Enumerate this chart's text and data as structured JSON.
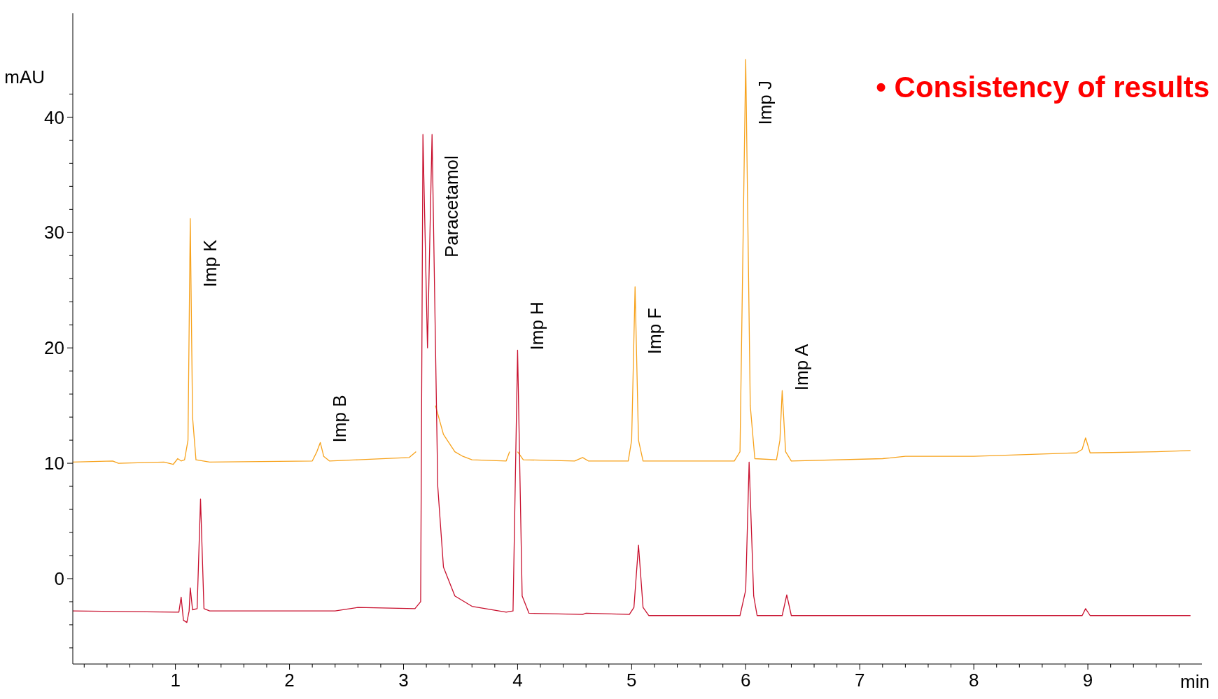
{
  "chart_data": {
    "type": "line",
    "xlabel": "min",
    "ylabel": "mAU",
    "xlim": [
      0.1,
      10
    ],
    "ylim": [
      -7.4,
      49
    ],
    "xticks": [
      {
        "value": 0.2,
        "label": null
      },
      {
        "value": 0.4,
        "label": null
      },
      {
        "value": 0.6,
        "label": null
      },
      {
        "value": 0.8,
        "label": null
      },
      1,
      {
        "value": 1.2,
        "label": null
      },
      {
        "value": 1.4,
        "label": null
      },
      {
        "value": 1.6,
        "label": null
      },
      {
        "value": 1.8,
        "label": null
      },
      2,
      {
        "value": 2.2,
        "label": null
      },
      {
        "value": 2.4,
        "label": null
      },
      {
        "value": 2.6,
        "label": null
      },
      {
        "value": 2.8,
        "label": null
      },
      3,
      {
        "value": 3.2,
        "label": null
      },
      {
        "value": 3.4,
        "label": null
      },
      {
        "value": 3.6,
        "label": null
      },
      {
        "value": 3.8,
        "label": null
      },
      4,
      {
        "value": 4.2,
        "label": null
      },
      {
        "value": 4.4,
        "label": null
      },
      {
        "value": 4.6,
        "label": null
      },
      {
        "value": 4.8,
        "label": null
      },
      5,
      {
        "value": 5.2,
        "label": null
      },
      {
        "value": 5.4,
        "label": null
      },
      {
        "value": 5.6,
        "label": null
      },
      {
        "value": 5.8,
        "label": null
      },
      6,
      {
        "value": 6.2,
        "label": null
      },
      {
        "value": 6.4,
        "label": null
      },
      {
        "value": 6.6,
        "label": null
      },
      {
        "value": 6.8,
        "label": null
      },
      7,
      {
        "value": 7.2,
        "label": null
      },
      {
        "value": 7.4,
        "label": null
      },
      {
        "value": 7.6,
        "label": null
      },
      {
        "value": 7.8,
        "label": null
      },
      8,
      {
        "value": 8.2,
        "label": null
      },
      {
        "value": 8.4,
        "label": null
      },
      {
        "value": 8.6,
        "label": null
      },
      {
        "value": 8.8,
        "label": null
      },
      9,
      {
        "value": 9.2,
        "label": null
      },
      {
        "value": 9.4,
        "label": null
      },
      {
        "value": 9.6,
        "label": null
      },
      {
        "value": 9.8,
        "label": null
      }
    ],
    "yticks": [
      {
        "value": -6,
        "label": null
      },
      {
        "value": -4,
        "label": null
      },
      {
        "value": -2,
        "label": null
      },
      0,
      {
        "value": 2,
        "label": null
      },
      {
        "value": 4,
        "label": null
      },
      {
        "value": 6,
        "label": null
      },
      {
        "value": 8,
        "label": null
      },
      10,
      {
        "value": 12,
        "label": null
      },
      {
        "value": 14,
        "label": null
      },
      {
        "value": 16,
        "label": null
      },
      {
        "value": 18,
        "label": null
      },
      20,
      {
        "value": 22,
        "label": null
      },
      {
        "value": 24,
        "label": null
      },
      {
        "value": 26,
        "label": null
      },
      {
        "value": 28,
        "label": null
      },
      30,
      {
        "value": 32,
        "label": null
      },
      {
        "value": 34,
        "label": null
      },
      {
        "value": 36,
        "label": null
      },
      {
        "value": 38,
        "label": null
      },
      40,
      {
        "value": 42,
        "label": null
      }
    ],
    "grid": false,
    "marker": "none",
    "line_style": "solid",
    "series": [
      {
        "color": "#f7a21b",
        "x": [
          0.1,
          0.45,
          0.5,
          0.9,
          0.98,
          1.02,
          1.05,
          1.08,
          1.11,
          1.13,
          1.15,
          1.18,
          1.3,
          2.2,
          2.24,
          2.27,
          2.3,
          2.35,
          2.6,
          3.05,
          3.11,
          3.13,
          3.24,
          3.28,
          3.35,
          3.45,
          3.52,
          3.6,
          3.9,
          3.93,
          3.95,
          3.98,
          4.0,
          4.05,
          4.5,
          4.57,
          4.62,
          4.97,
          5.0,
          5.03,
          5.06,
          5.1,
          5.9,
          5.95,
          6.0,
          6.04,
          6.08,
          6.27,
          6.3,
          6.32,
          6.35,
          6.4,
          7.2,
          7.4,
          8.0,
          8.9,
          8.95,
          8.98,
          9.02,
          9.6,
          9.9
        ],
        "values": [
          10.1,
          10.2,
          10.0,
          10.1,
          9.9,
          10.4,
          10.2,
          10.3,
          12,
          31.2,
          14,
          10.3,
          10.1,
          10.2,
          11,
          11.8,
          10.6,
          10.2,
          10.3,
          10.5,
          11,
          null,
          null,
          15,
          12.5,
          11,
          10.6,
          10.3,
          10.2,
          11,
          null,
          null,
          11,
          10.3,
          10.2,
          10.5,
          10.2,
          10.2,
          12,
          25.3,
          12,
          10.2,
          10.2,
          11,
          45,
          15,
          10.4,
          10.3,
          12,
          16.3,
          11,
          10.2,
          10.4,
          10.6,
          10.6,
          10.9,
          11.2,
          12.2,
          10.9,
          11,
          11.1
        ]
      },
      {
        "color": "#c8102e",
        "x": [
          0.1,
          1.0,
          1.03,
          1.05,
          1.07,
          1.1,
          1.12,
          1.13,
          1.15,
          1.19,
          1.22,
          1.25,
          1.3,
          2.4,
          2.6,
          3.1,
          3.15,
          3.17,
          3.21,
          3.25,
          3.3,
          3.35,
          3.45,
          3.6,
          3.9,
          3.96,
          4.0,
          4.04,
          4.1,
          4.57,
          4.6,
          4.98,
          5.02,
          5.06,
          5.1,
          5.15,
          5.95,
          6.0,
          6.03,
          6.07,
          6.1,
          6.32,
          6.36,
          6.4,
          8.95,
          8.98,
          9.02,
          9.9
        ],
        "values": [
          -2.8,
          -2.9,
          -2.9,
          -1.6,
          -3.6,
          -3.8,
          -2.8,
          -0.8,
          -2.7,
          -2.6,
          6.9,
          -2.6,
          -2.8,
          -2.8,
          -2.5,
          -2.6,
          -2,
          38.5,
          20,
          38.5,
          8,
          1,
          -1.5,
          -2.4,
          -2.9,
          -2.8,
          19.8,
          -1.5,
          -3,
          -3.1,
          -3.0,
          -3.1,
          -2.5,
          2.9,
          -2.5,
          -3.2,
          -3.2,
          -1,
          10.1,
          -1.5,
          -3.2,
          -3.2,
          -1.4,
          -3.2,
          -3.2,
          -2.6,
          -3.2,
          -3.2
        ]
      }
    ],
    "annotations": [
      {
        "text": "Imp K",
        "x": 1.13,
        "y": 31.2
      },
      {
        "text": "Imp B",
        "x": 2.27,
        "y": 11.8
      },
      {
        "text": "Paracetamol",
        "x": 3.25,
        "y": 38.5
      },
      {
        "text": "Imp H",
        "x": 4.0,
        "y": 19.8
      },
      {
        "text": "Imp F",
        "x": 5.03,
        "y": 25.3
      },
      {
        "text": "Imp J",
        "x": 6.0,
        "y": 45
      },
      {
        "text": "Imp A",
        "x": 6.32,
        "y": 16.3
      },
      "• Consistency of results"
    ]
  }
}
